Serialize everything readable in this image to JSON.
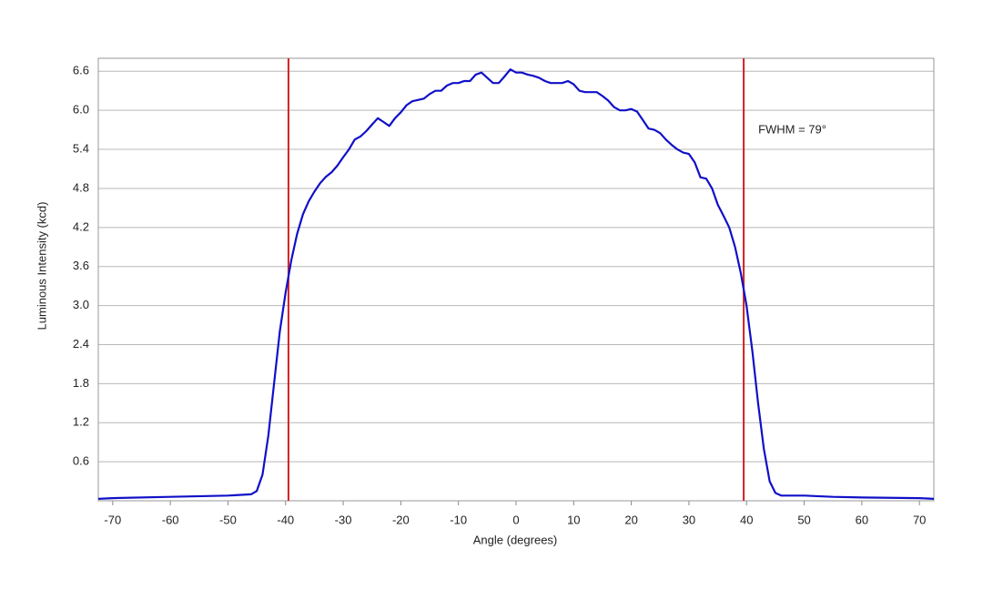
{
  "chart_data": {
    "type": "line",
    "x_label": "Angle (degrees)",
    "y_label": "Luminous Intensity (kcd)",
    "annotation": "FWHM = 79°",
    "x": [
      -72.5,
      -70,
      -60,
      -50,
      -46,
      -45,
      -44,
      -43,
      -42,
      -41,
      -40,
      -39,
      -38,
      -37,
      -36,
      -35,
      -34,
      -33,
      -32,
      -31,
      -30,
      -29,
      -28,
      -27,
      -26,
      -25,
      -24,
      -23,
      -22,
      -21,
      -20,
      -19,
      -18,
      -16,
      -15,
      -14,
      -13,
      -12,
      -11,
      -10,
      -9,
      -8,
      -7,
      -6,
      -5,
      -4,
      -3,
      -2,
      -1,
      0,
      1,
      2,
      3,
      4,
      5,
      6,
      7,
      8,
      9,
      10,
      11,
      12,
      13,
      14,
      15,
      16,
      17,
      18,
      19,
      20,
      21,
      22,
      23,
      24,
      25,
      26,
      27,
      28,
      29,
      30,
      31,
      32,
      33,
      34,
      35,
      36,
      37,
      38,
      39,
      40,
      41,
      42,
      43,
      44,
      45,
      46,
      50,
      55,
      60,
      70,
      72.5
    ],
    "series": [
      {
        "color": "#1010c8",
        "values": [
          0.03,
          0.04,
          0.06,
          0.08,
          0.1,
          0.15,
          0.4,
          1.0,
          1.8,
          2.6,
          3.2,
          3.7,
          4.1,
          4.4,
          4.6,
          4.75,
          4.88,
          4.98,
          5.05,
          5.15,
          5.28,
          5.4,
          5.55,
          5.6,
          5.68,
          5.78,
          5.88,
          5.82,
          5.76,
          5.88,
          5.97,
          6.08,
          6.14,
          6.18,
          6.25,
          6.3,
          6.3,
          6.38,
          6.42,
          6.42,
          6.45,
          6.45,
          6.55,
          6.58,
          6.5,
          6.42,
          6.42,
          6.52,
          6.63,
          6.58,
          6.58,
          6.55,
          6.53,
          6.5,
          6.45,
          6.42,
          6.42,
          6.42,
          6.45,
          6.4,
          6.3,
          6.28,
          6.28,
          6.28,
          6.22,
          6.15,
          6.05,
          6.0,
          6.0,
          6.02,
          5.98,
          5.85,
          5.72,
          5.7,
          5.65,
          5.55,
          5.47,
          5.4,
          5.35,
          5.33,
          5.2,
          4.97,
          4.95,
          4.8,
          4.55,
          4.38,
          4.2,
          3.9,
          3.5,
          3.0,
          2.3,
          1.5,
          0.8,
          0.3,
          0.12,
          0.08,
          0.08,
          0.06,
          0.05,
          0.04,
          0.03
        ]
      }
    ],
    "vlines": [
      -39.5,
      39.5
    ],
    "vline_color": "#d42020",
    "xlim": [
      -72.5,
      72.5
    ],
    "xticks": [
      -70,
      -60,
      -50,
      -40,
      -30,
      -20,
      -10,
      0,
      10,
      20,
      30,
      40,
      50,
      60,
      70
    ],
    "ylim": [
      0,
      6.8
    ],
    "yticks": [
      0.6,
      1.2,
      1.8,
      2.4,
      {
        "value": 3.0,
        "label": "3.0"
      },
      3.6,
      4.2,
      4.8,
      5.4,
      {
        "value": 6.0,
        "label": "6.0"
      },
      6.6
    ],
    "grid": true
  }
}
